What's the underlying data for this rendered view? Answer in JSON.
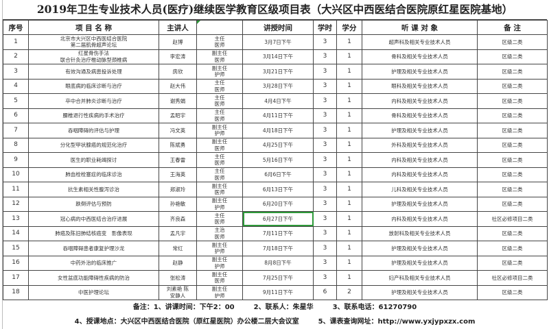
{
  "title": "2019年卫生专业技术人员(医疗)继续医学教育区级项目表（大兴区中西医结合医院原红星医院基地）",
  "headers": {
    "no": "序号",
    "name": "项 目 名 称",
    "speaker": "主讲人",
    "rank": "",
    "time": "讲授时间",
    "hours": "学时",
    "credit": "学分",
    "audience": "听 课 对 象",
    "remark": "备   注"
  },
  "rows": [
    {
      "no": "1",
      "name1": "北京市大兴区中西医结合医院",
      "name2": "第二届肌骨超声论坛",
      "speaker": "赵博",
      "rank1": "主任",
      "rank2": "医师",
      "time": "3月7日下午",
      "hours": "3",
      "credit": "1",
      "audience": "超声科及相关专业技术人员",
      "remark": "区级二类"
    },
    {
      "no": "2",
      "name1": "红星骨伤手法",
      "name2": "联合针灸治疗椎动脉型颈椎病",
      "speaker": "李宏涛",
      "rank1": "副主任",
      "rank2": "医师",
      "time": "3月14日下午",
      "hours": "3",
      "credit": "1",
      "audience": "骨科及相关专业技术人员",
      "remark": "区级二类"
    },
    {
      "no": "3",
      "name1": "有效沟通及病患投诉处理",
      "name2": "",
      "speaker": "房欣",
      "rank1": "副主任",
      "rank2": "护师",
      "time": "3月21日下午",
      "hours": "3",
      "credit": "1",
      "audience": "护理及相关专业技术人员",
      "remark": "区级二类"
    },
    {
      "no": "4",
      "name1": "眼底病的临床诊断与治疗",
      "name2": "",
      "speaker": "赵大伟",
      "rank1": "主任",
      "rank2": "医师",
      "time": "3月28日下午",
      "hours": "3",
      "credit": "1",
      "audience": "眼科及相关专业技术人员",
      "remark": "区级二类"
    },
    {
      "no": "5",
      "name1": "卒中合并肺炎诊断与治疗",
      "name2": "",
      "speaker": "谢秀娟",
      "rank1": "主任",
      "rank2": "医师",
      "time": "4月4日下午",
      "hours": "3",
      "credit": "1",
      "audience": "内科及相关专业技术人员",
      "remark": "区级二类"
    },
    {
      "no": "6",
      "name1": "腰椎退行性疾病的手术治疗",
      "name2": "",
      "speaker": "孟昭宇",
      "rank1": "主任",
      "rank2": "医师",
      "time": "4月11日下午",
      "hours": "3",
      "credit": "1",
      "audience": "骨科及相关专业技术人员",
      "remark": "区级二类"
    },
    {
      "no": "7",
      "name1": "吞咽障碍的评估与护理",
      "name2": "",
      "speaker": "冯文英",
      "rank1": "副主任",
      "rank2": "护师",
      "time": "4月18日下午",
      "hours": "3",
      "credit": "1",
      "audience": "护理及相关专业技术人员",
      "remark": "区级二类"
    },
    {
      "no": "8",
      "name1": "分化型甲状腺癌的规范化治疗",
      "name2": "",
      "speaker": "陈斌勇",
      "rank1": "副主任",
      "rank2": "医师",
      "time": "4月25日下午",
      "hours": "3",
      "credit": "1",
      "audience": "外科及相关专业技术人员",
      "remark": "区级二类"
    },
    {
      "no": "9",
      "name1": "医生的职业耗竭探讨",
      "name2": "",
      "speaker": "王春雷",
      "rank1": "主任",
      "rank2": "医师",
      "time": "5月16日下午",
      "hours": "3",
      "credit": "1",
      "audience": "内科及相关专业技术人员",
      "remark": "区级二类"
    },
    {
      "no": "10",
      "name1": "肺血栓栓塞症的临床诊治",
      "name2": "",
      "speaker": "王海英",
      "rank1": "主任",
      "rank2": "医师",
      "time": "6月6日下午",
      "hours": "3",
      "credit": "1",
      "audience": "内科及相关专业技术人员",
      "remark": "区级二类"
    },
    {
      "no": "11",
      "name1": "抗生素相关性腹泻诊治",
      "name2": "",
      "speaker": "郑淑玲",
      "rank1": "副主任",
      "rank2": "医师",
      "time": "6月13日下午",
      "hours": "3",
      "credit": "1",
      "audience": "儿科及相关专业技术人员",
      "remark": "区级二类"
    },
    {
      "no": "12",
      "name1": "跌倒评估与预防",
      "name2": "",
      "speaker": "孙艳敏",
      "rank1": "副主任",
      "rank2": "护师",
      "time": "6月20日下午",
      "hours": "3",
      "credit": "1",
      "audience": "护理及相关专业技术人员",
      "remark": "区级二类"
    },
    {
      "no": "13",
      "name1": "冠心病的中西医结合治疗进展",
      "name2": "",
      "speaker": "齐良森",
      "rank1": "主任",
      "rank2": "医师",
      "time": "6月27日下午",
      "hours": "3",
      "credit": "1",
      "audience": "内科及相关专业技术人员",
      "remark": "社区必修项目二类"
    },
    {
      "no": "14",
      "name1": "肺癌及陈旧肺结核癌变　影像表现",
      "name2": "",
      "speaker": "孟凡宇",
      "rank1": "主治",
      "rank2": "医师",
      "time": "7月11日下午",
      "hours": "3",
      "credit": "1",
      "audience": "放射科及相关专业技术人员",
      "remark": "区级二类"
    },
    {
      "no": "15",
      "name1": "吞咽障碍患者康复护理沙龙",
      "name2": "",
      "speaker": "常红",
      "rank1": "副主任",
      "rank2": "护师",
      "time": "7月18日下午",
      "hours": "3",
      "credit": "1",
      "audience": "护理及相关专业技术人员",
      "remark": "区级二类"
    },
    {
      "no": "16",
      "name1": "中药外治的临床推广",
      "name2": "",
      "speaker": "赵静",
      "rank1": "副主任",
      "rank2": "护师",
      "time": "8月8日下午",
      "hours": "3",
      "credit": "1",
      "audience": "护理及相关专业技术人员",
      "remark": "区级二类"
    },
    {
      "no": "17",
      "name1": "女性盆底功能障碍性疾病的防治",
      "name2": "",
      "speaker": "张松涛",
      "rank1": "副主任",
      "rank2": "医师",
      "time": "7月25日下午",
      "hours": "3",
      "credit": "1",
      "audience": "妇产科及相关专业技术人员",
      "remark": "社区必修项目二类"
    },
    {
      "no": "18",
      "name1": "中医护理论坛",
      "name2": "",
      "speaker": "刘素艳 陈\n安静人",
      "rank1": "副主任",
      "rank2": "护师",
      "time": "9月11日下午",
      "hours": "6",
      "credit": "2",
      "audience": "护理及相关专业技术人员",
      "remark": "区级二类"
    }
  ],
  "notes": {
    "n1": "备注：1、讲课时间：下午2：00",
    "n2": "2、联系人：朱星华",
    "n3": "3、联系电话：61270790",
    "n4": "4、授课地点：大兴区中西医结合医院（原红星医院）办公楼二层大会议室",
    "n5": "5、课表查询网址：http://www.yxjypxzx.com"
  },
  "selected_cell": {
    "row": "13",
    "column": "讲授时间"
  },
  "colors": {
    "selection": "#2e9a3a",
    "grid": "#444444"
  }
}
